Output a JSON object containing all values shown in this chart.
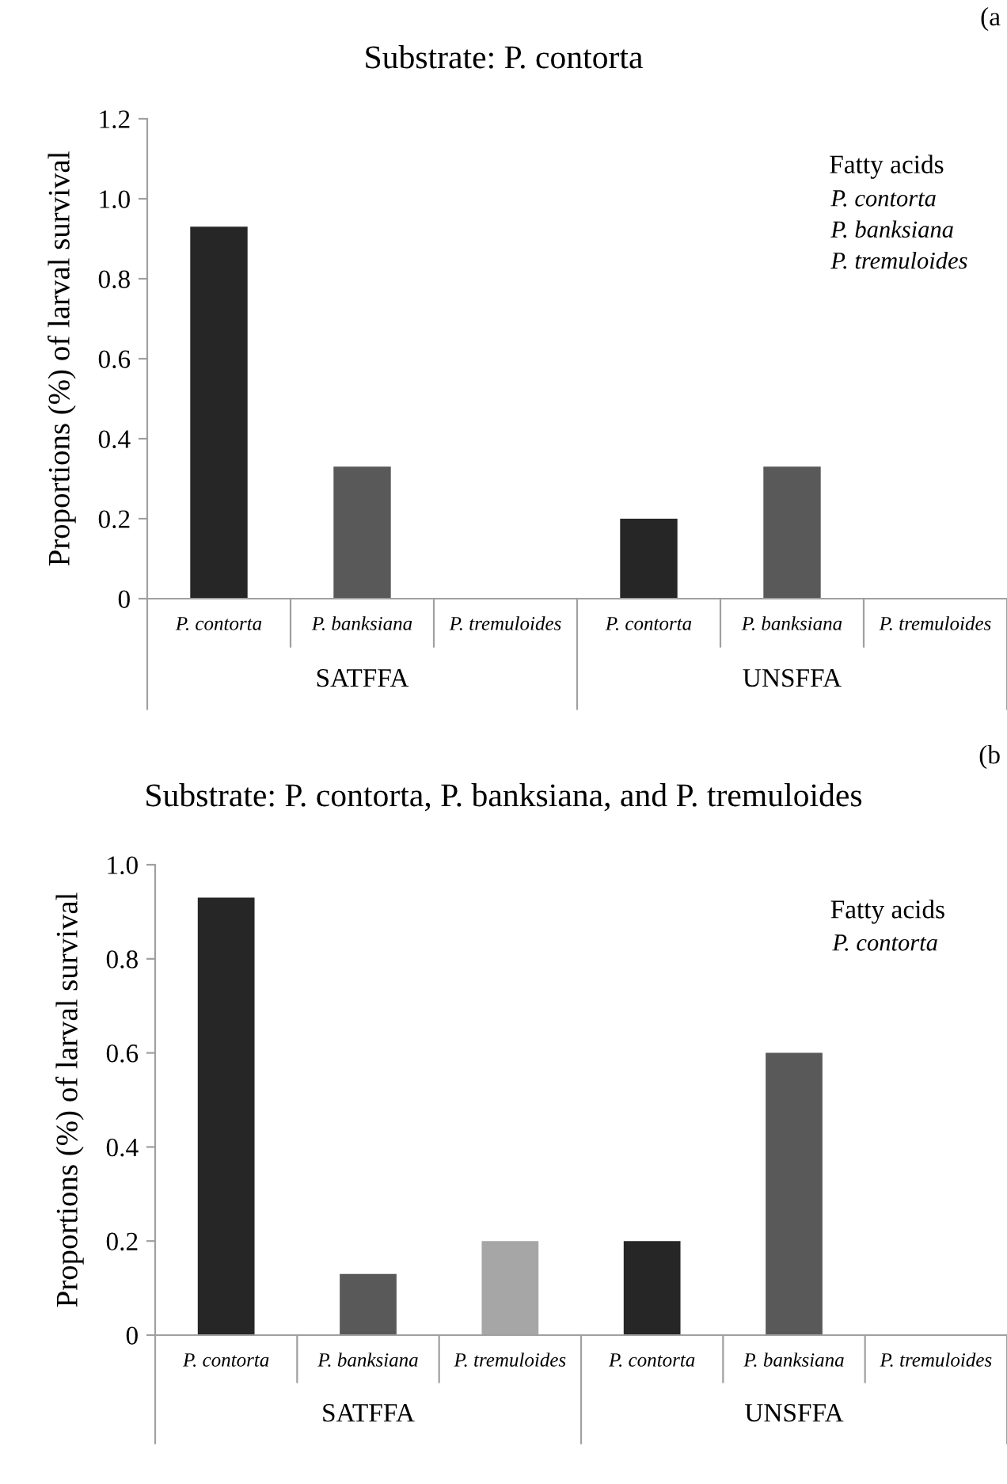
{
  "chart_data": [
    {
      "type": "bar",
      "title": "Substrate: P. contorta",
      "ylabel": "Proportions (%) of larval survival",
      "categories": [
        "P. contorta",
        "P. banksiana",
        "P. tremuloides",
        "P. contorta",
        "P. banksiana",
        "P. tremuloides"
      ],
      "values": [
        0.93,
        0.33,
        0,
        0.2,
        0.33,
        0
      ],
      "colors": [
        "#262626",
        "#595959",
        "#a6a6a6",
        "#262626",
        "#595959",
        "#a6a6a6"
      ],
      "ylim": [
        0,
        1.2
      ],
      "yticks": [
        0,
        0.2,
        0.4,
        0.6,
        0.8,
        {
          "value": 1,
          "label": "1.0"
        },
        1.2
      ],
      "grid": false,
      "annotations": [
        "(a",
        "SATFFA",
        "UNSFFA",
        "Fatty acids",
        "P. contorta",
        "P. banksiana",
        "P. tremuloides"
      ]
    },
    {
      "type": "bar",
      "title": "Substrate: P. contorta, P. banksiana, and P. tremuloides",
      "ylabel": "Proportions (%) of larval survival",
      "categories": [
        "P. contorta",
        "P. banksiana",
        "P. tremuloides",
        "P. contorta",
        "P. banksiana",
        "P. tremuloides"
      ],
      "values": [
        0.93,
        0.13,
        0.2,
        0.2,
        0.6,
        0
      ],
      "colors": [
        "#262626",
        "#595959",
        "#a6a6a6",
        "#262626",
        "#595959",
        "#a6a6a6"
      ],
      "ylim": [
        0,
        1
      ],
      "yticks": [
        0,
        0.2,
        0.4,
        0.6,
        0.8,
        {
          "value": 1,
          "label": "1.0"
        }
      ],
      "grid": false,
      "annotations": [
        "(b",
        "SATFFA",
        "UNSFFA",
        "Fatty acids",
        "P. contorta"
      ]
    }
  ]
}
